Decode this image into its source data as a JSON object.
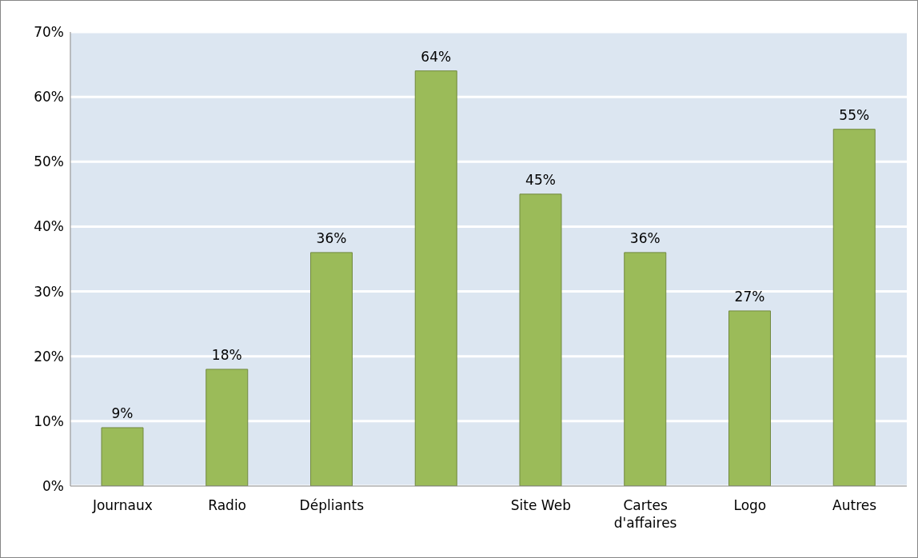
{
  "chart_data": {
    "type": "bar",
    "categories": [
      "Journaux",
      "Radio",
      "Dépliants",
      null,
      "Site Web",
      "Cartes d'affaires",
      "Logo",
      "Autres"
    ],
    "values": [
      9,
      18,
      36,
      64,
      45,
      36,
      27,
      55
    ],
    "value_labels": [
      "9%",
      "18%",
      "36%",
      "64%",
      "45%",
      "36%",
      "27%",
      "55%"
    ],
    "color": "#9bbb59",
    "ylim": [
      0,
      70
    ],
    "yticks": [
      {
        "value": 0,
        "label": "0%"
      },
      {
        "value": 10,
        "label": "10%"
      },
      {
        "value": 20,
        "label": "20%"
      },
      {
        "value": 30,
        "label": "30%"
      },
      {
        "value": 40,
        "label": "40%"
      },
      {
        "value": 50,
        "label": "50%"
      },
      {
        "value": 60,
        "label": "60%"
      },
      {
        "value": 70,
        "label": "70%"
      }
    ],
    "grid": "y"
  }
}
